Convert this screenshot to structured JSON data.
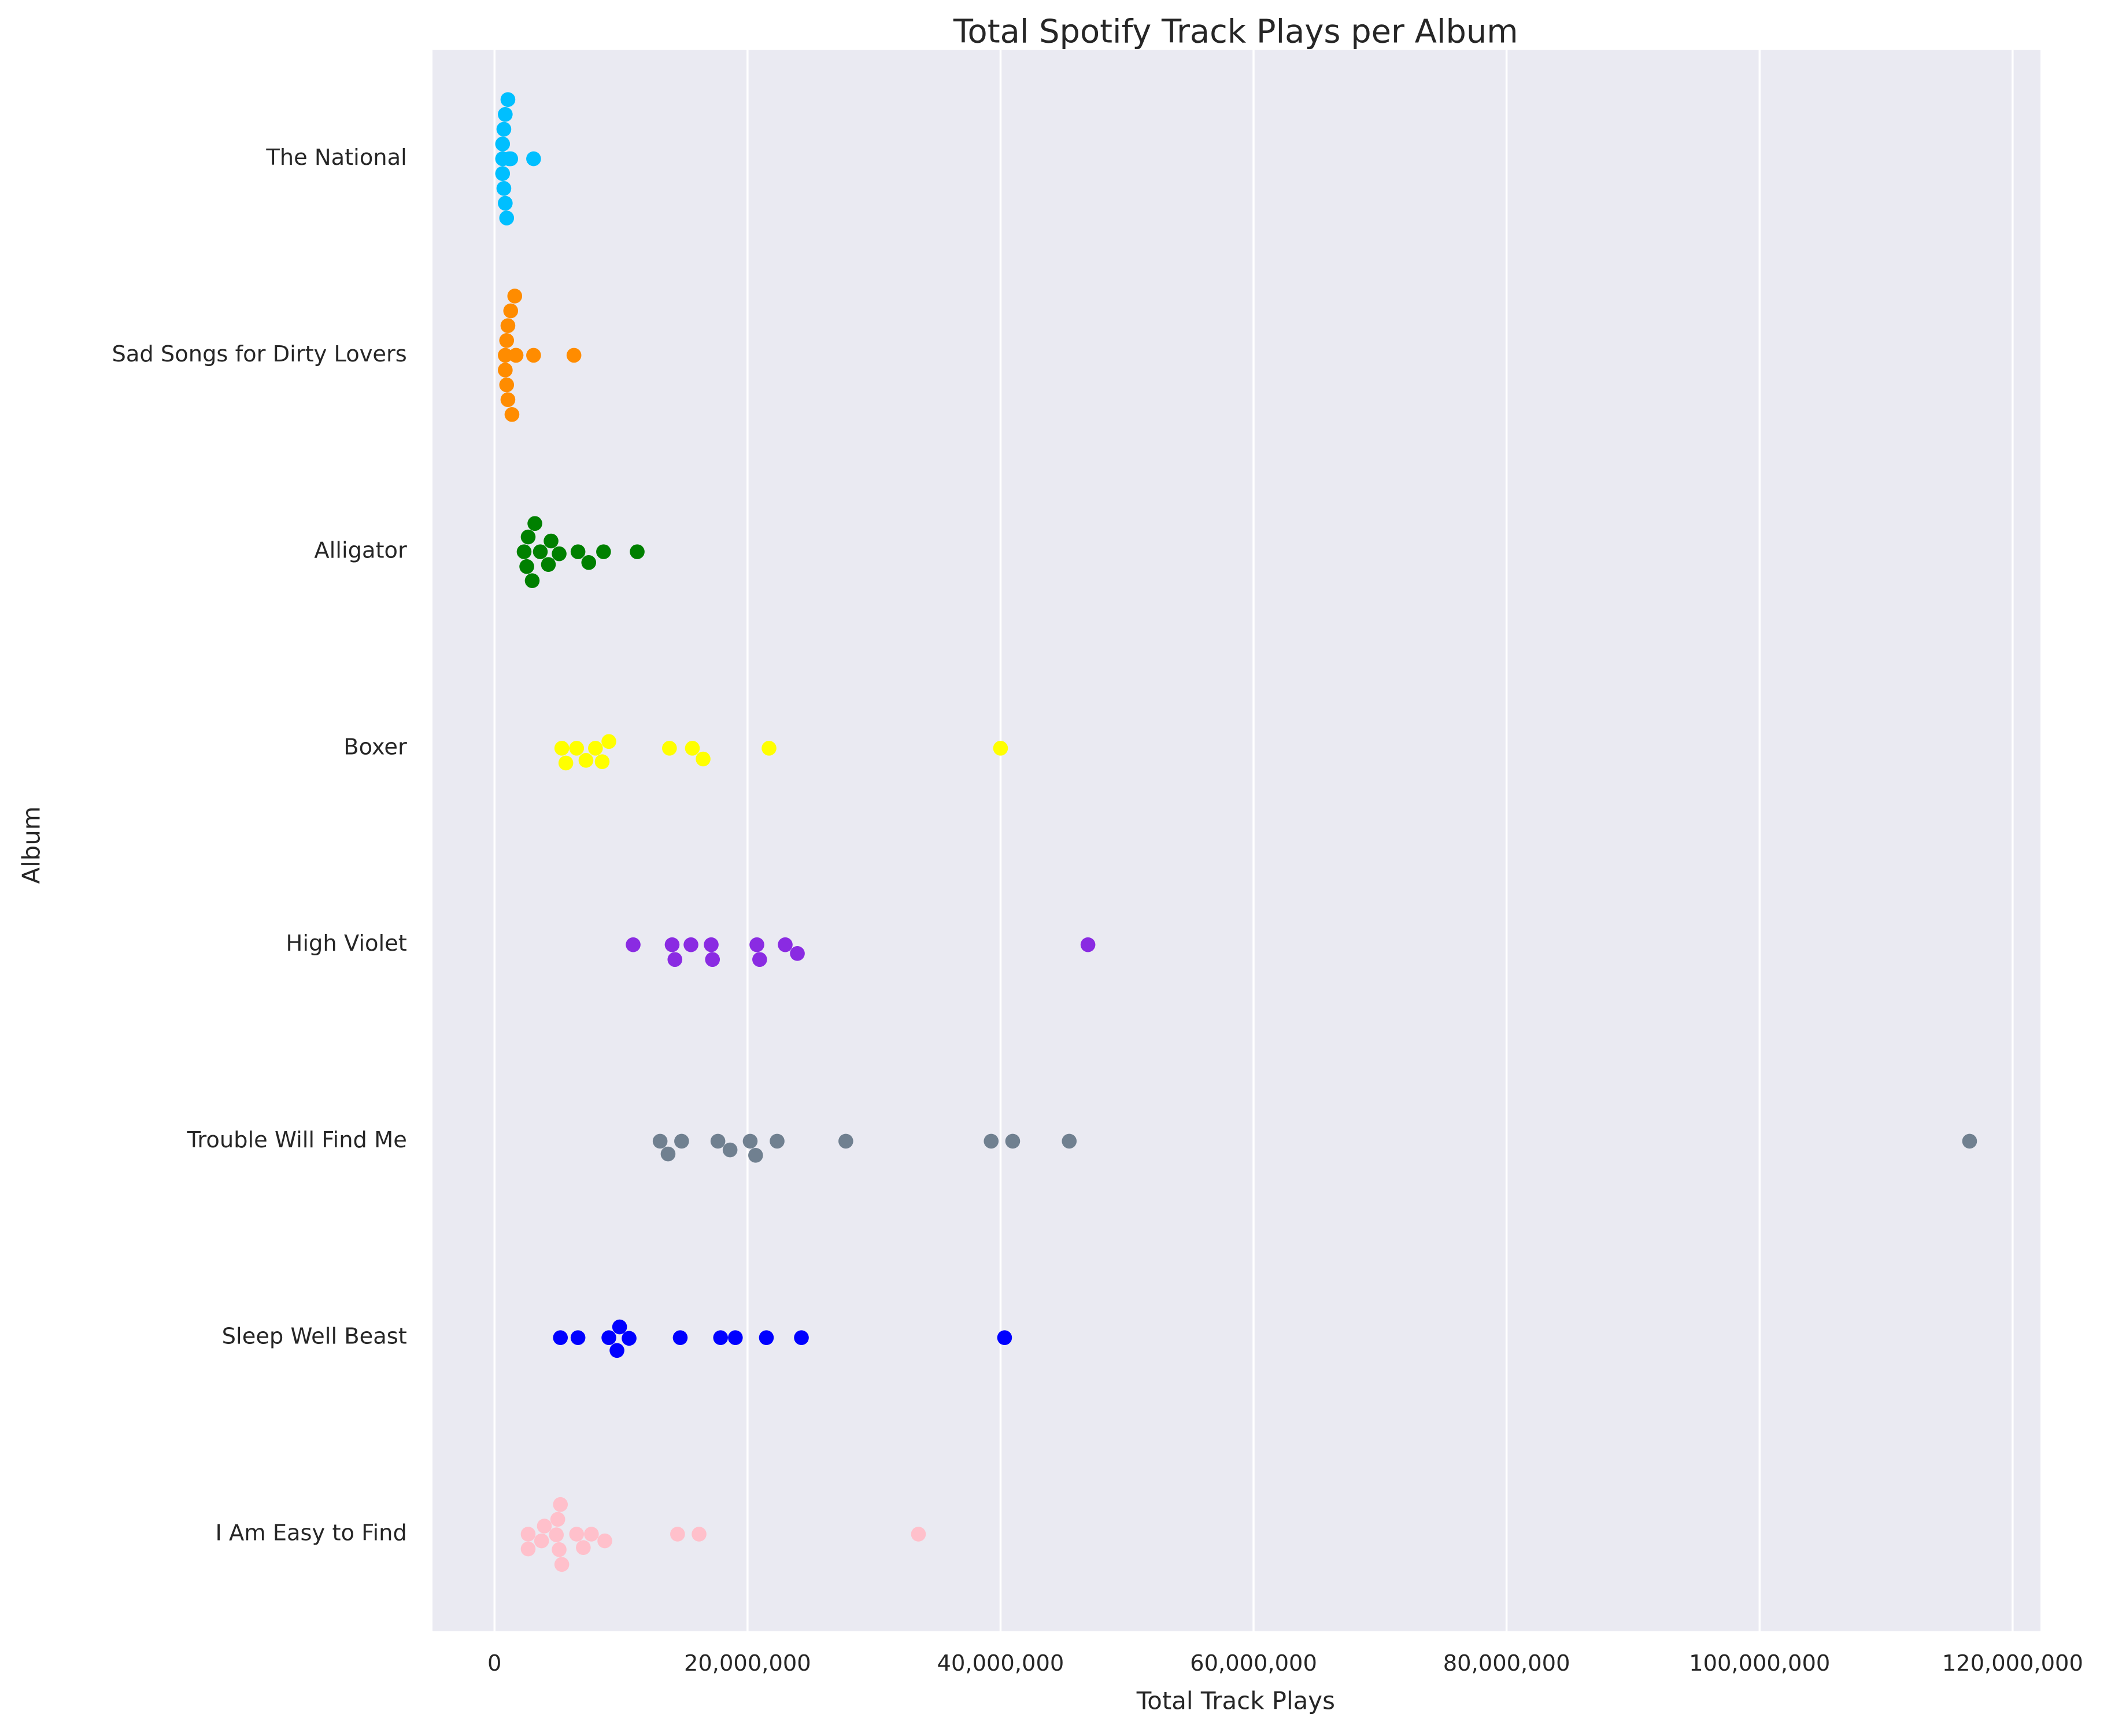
{
  "chart_data": {
    "type": "swarm",
    "title": "Total Spotify Track Plays per Album",
    "x_label": "Total Track Plays",
    "y_label": "Album",
    "categories": [
      "The National",
      "Sad Songs for Dirty Lovers",
      "Alligator",
      "Boxer",
      "High Violet",
      "Trouble Will Find Me",
      "Sleep Well Beast",
      "I Am Easy to Find"
    ],
    "colors": [
      "#00bfff",
      "#ff8c00",
      "#008000",
      "#ffff00",
      "#8a2be2",
      "#708090",
      "#0000ff",
      "#ffc0cb"
    ],
    "values": [
      [
        1280000,
        960000,
        850000,
        740000,
        640000,
        640000,
        640000,
        740000,
        850000,
        1060000,
        1170000,
        3090000
      ],
      [
        1700000,
        1600000,
        1280000,
        1060000,
        960000,
        850000,
        850000,
        960000,
        1060000,
        1380000,
        1700000,
        3090000,
        6280000
      ],
      [
        2980000,
        2550000,
        4470000,
        7450000,
        2340000,
        3620000,
        5110000,
        6600000,
        8620000,
        11280000,
        2660000,
        4260000,
        3190000
      ],
      [
        5640000,
        5320000,
        6490000,
        7980000,
        9040000,
        7230000,
        8510000,
        13830000,
        15640000,
        16490000,
        21700000,
        40000000
      ],
      [
        10960000,
        14040000,
        14260000,
        15530000,
        17130000,
        17230000,
        20740000,
        20960000,
        22980000,
        23940000,
        46910000
      ],
      [
        13090000,
        13720000,
        14790000,
        17660000,
        18620000,
        20210000,
        20640000,
        22340000,
        27770000,
        39260000,
        40960000,
        45430000,
        116600000
      ],
      [
        5210000,
        6600000,
        9040000,
        9680000,
        9890000,
        10640000,
        14680000,
        17870000,
        19040000,
        21490000,
        24260000,
        40320000
      ],
      [
        2660000,
        2660000,
        3720000,
        3940000,
        4890000,
        5110000,
        5000000,
        5320000,
        5210000,
        6490000,
        7020000,
        7660000,
        8720000,
        14470000,
        16170000,
        33510000
      ]
    ],
    "xlim": [
      -4900000,
      122200000
    ],
    "xticks": [
      0,
      {
        "value": 20000000,
        "label": "20,000,000"
      },
      {
        "value": 40000000,
        "label": "40,000,000"
      },
      {
        "value": 60000000,
        "label": "60,000,000"
      },
      {
        "value": 80000000,
        "label": "80,000,000"
      },
      {
        "value": 100000000,
        "label": "100,000,000"
      },
      {
        "value": 120000000,
        "label": "120,000,000"
      }
    ],
    "grid": true
  }
}
